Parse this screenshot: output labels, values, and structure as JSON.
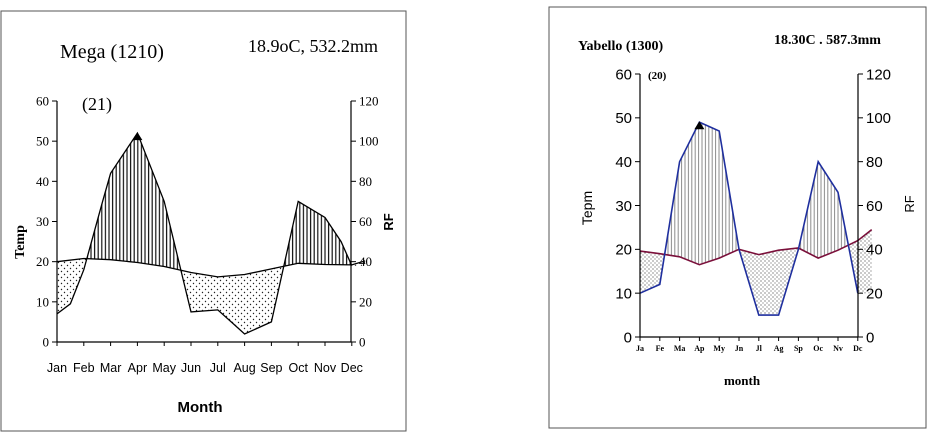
{
  "chart_data": [
    {
      "type": "line",
      "title": "Mega (1210)",
      "subtitle": "18.9oC, 532.2mm",
      "panel_number": "(21)",
      "xlabel": "Month",
      "ylabel": "Temp",
      "y2label": "RF",
      "categories": [
        "Jan",
        "Feb",
        "Mar",
        "Apr",
        "May",
        "Jun",
        "Jul",
        "Aug",
        "Sep",
        "Oct",
        "Nov",
        "Dec"
      ],
      "ylim": [
        0,
        60
      ],
      "y2lim": [
        0,
        120
      ],
      "yticks": [
        "0",
        "10",
        "20",
        "30",
        "40",
        "50",
        "60"
      ],
      "y2ticks": [
        "0",
        "20",
        "40",
        "60",
        "80",
        "100",
        "120"
      ],
      "series": [
        {
          "name": "Temp",
          "axis": "left",
          "x": [
            0,
            1,
            2,
            3,
            4,
            5,
            6,
            7,
            8,
            9,
            10,
            11,
            11.5
          ],
          "values": [
            20.0,
            20.8,
            20.5,
            19.8,
            18.8,
            17.3,
            16.2,
            16.8,
            18.2,
            19.6,
            19.3,
            19.2,
            20.2
          ]
        },
        {
          "name": "RF",
          "axis": "right",
          "x": [
            0,
            0.5,
            1,
            1.7,
            2,
            3,
            4,
            5,
            6,
            6.5,
            7,
            8,
            9,
            10,
            10.6,
            11
          ],
          "values": [
            14,
            19,
            36,
            70,
            84,
            104,
            70,
            15,
            16,
            10,
            4,
            10,
            70,
            62,
            50,
            38
          ]
        }
      ]
    },
    {
      "type": "line",
      "title": "Yabello (1300)",
      "subtitle": "18.30C . 587.3mm",
      "panel_number": "(20)",
      "xlabel": "month",
      "ylabel": "Tepm",
      "y2label": "RF",
      "categories": [
        "Ja",
        "Fe",
        "Ma",
        "Ap",
        "My",
        "Jn",
        "Jl",
        "Ag",
        "Sp",
        "Oc",
        "Nv",
        "Dc"
      ],
      "ylim": [
        0,
        60
      ],
      "y2lim": [
        0,
        120
      ],
      "yticks": [
        "0",
        "10",
        "20",
        "30",
        "40",
        "50",
        "60"
      ],
      "y2ticks": [
        "0",
        "20",
        "40",
        "60",
        "80",
        "100",
        "120"
      ],
      "series": [
        {
          "name": "Temp",
          "axis": "left",
          "x": [
            0,
            1,
            2,
            3,
            4,
            5,
            6,
            7,
            8,
            9,
            10,
            11,
            11.7
          ],
          "values": [
            19.6,
            19.0,
            18.3,
            16.5,
            18.0,
            20.0,
            18.8,
            19.8,
            20.3,
            18.0,
            19.8,
            22.0,
            24.5
          ]
        },
        {
          "name": "RF",
          "axis": "right",
          "x": [
            0,
            1,
            2,
            3,
            4,
            5,
            6,
            7,
            8,
            9,
            10,
            11
          ],
          "values": [
            20,
            24,
            80,
            98,
            94,
            40,
            10,
            10,
            40,
            80,
            66,
            20
          ]
        }
      ]
    }
  ]
}
